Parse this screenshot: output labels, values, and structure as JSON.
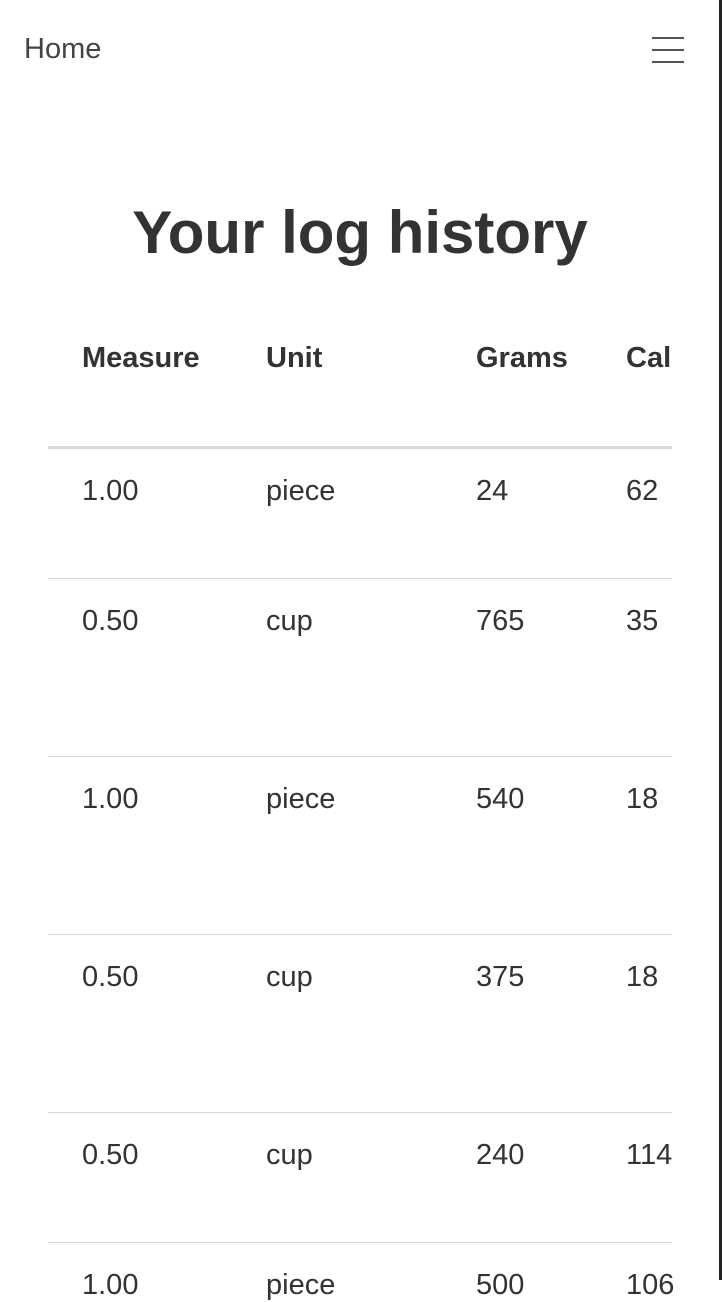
{
  "nav": {
    "home": "Home"
  },
  "header": {
    "title": "Your log history"
  },
  "table": {
    "columns": [
      "Measure",
      "Unit",
      "Grams",
      "Cal"
    ],
    "rows": [
      [
        "1.00",
        "piece",
        "24",
        "62"
      ],
      [
        "0.50",
        "cup",
        "765",
        "35"
      ],
      [
        "1.00",
        "piece",
        "540",
        "18"
      ],
      [
        "0.50",
        "cup",
        "375",
        "18"
      ],
      [
        "0.50",
        "cup",
        "240",
        "114"
      ],
      [
        "1.00",
        "piece",
        "500",
        "106"
      ]
    ]
  }
}
